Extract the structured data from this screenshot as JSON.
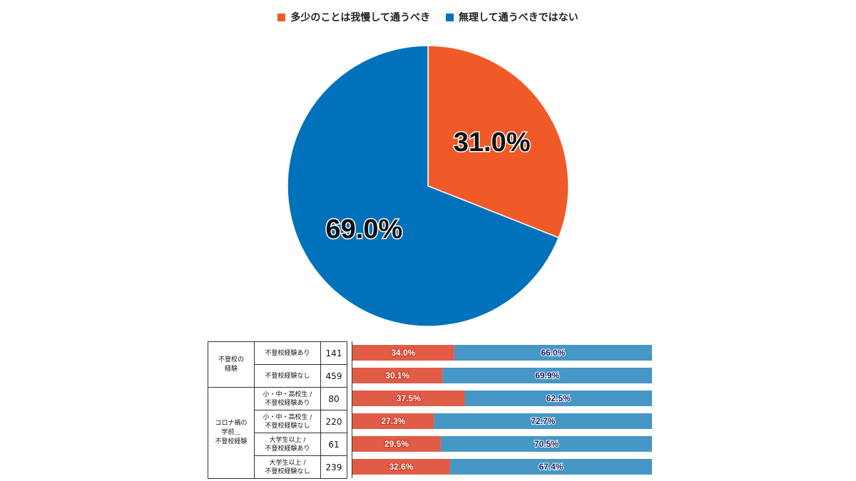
{
  "colors": {
    "orange": "#f05a28",
    "blue": "#0072bc",
    "bar_orange": "#e05c46",
    "bar_blue": "#4797c6"
  },
  "legend": [
    {
      "label": "多少のことは我慢して通うべき",
      "color": "#f05a28"
    },
    {
      "label": "無理して通うべきではない",
      "color": "#0072bc"
    }
  ],
  "chart_data": [
    {
      "type": "pie",
      "slices": [
        {
          "label": "多少のことは我慢して通うべき",
          "value": 31.0,
          "text": "31.0%"
        },
        {
          "label": "無理して通うべきではない",
          "value": 69.0,
          "text": "69.0%"
        }
      ]
    },
    {
      "type": "bar",
      "orientation": "horizontal-stacked-100",
      "groups": [
        {
          "label": "不登校の\n経験",
          "rows": [
            0,
            1
          ]
        },
        {
          "label": "コロナ禍の\n学前＿\n不登校経験",
          "rows": [
            2,
            3,
            4,
            5
          ]
        }
      ],
      "rows": [
        {
          "label": "不登校経験あり",
          "n": "141",
          "a": 34.0,
          "b": 66.0,
          "a_text": "34.0%",
          "b_text": "66.0%"
        },
        {
          "label": "不登校経験なし",
          "n": "459",
          "a": 30.1,
          "b": 69.9,
          "a_text": "30.1%",
          "b_text": "69.9%"
        },
        {
          "label": "小・中・高校生 /\n不登校経験あり",
          "n": "80",
          "a": 37.5,
          "b": 62.5,
          "a_text": "37.5%",
          "b_text": "62.5%"
        },
        {
          "label": "小・中・高校生 /\n不登校経験なし",
          "n": "220",
          "a": 27.3,
          "b": 72.7,
          "a_text": "27.3%",
          "b_text": "72.7%"
        },
        {
          "label": "大学生以上 /\n不登校経験あり",
          "n": "61",
          "a": 29.5,
          "b": 70.5,
          "a_text": "29.5%",
          "b_text": "70.5%"
        },
        {
          "label": "大学生以上 /\n不登校経験なし",
          "n": "239",
          "a": 32.6,
          "b": 67.4,
          "a_text": "32.6%",
          "b_text": "67.4%"
        }
      ]
    }
  ]
}
